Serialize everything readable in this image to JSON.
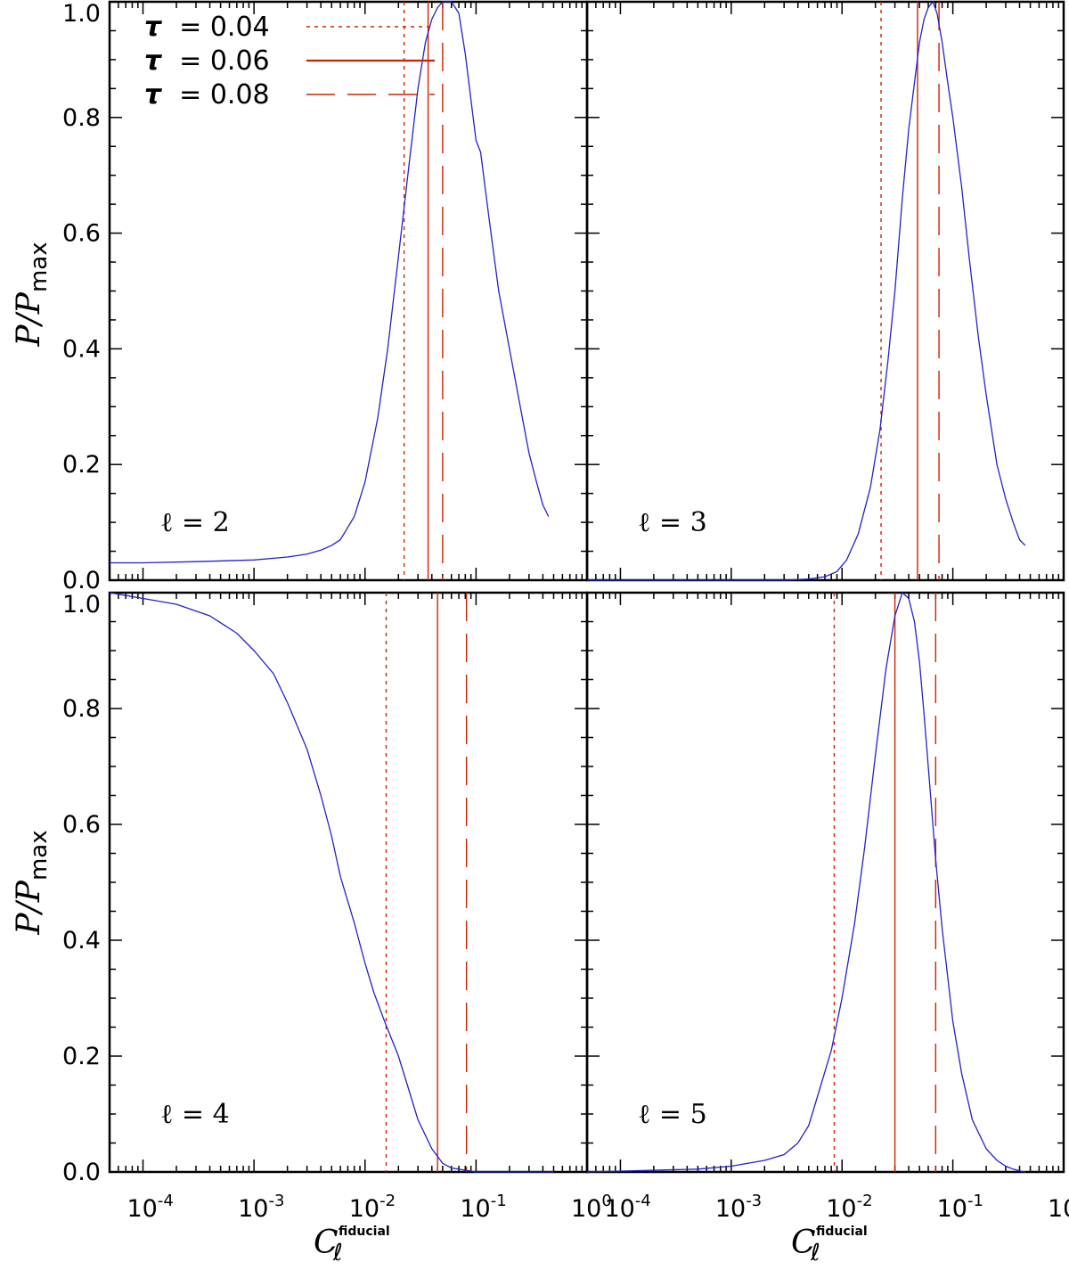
{
  "colors": {
    "curve": "#2222cc",
    "marker": "#cc2200",
    "frame": "#000000"
  },
  "y_axis_label": {
    "main": "P/P",
    "sub": "max"
  },
  "x_axis_label": {
    "main": "C",
    "sub": "ℓ",
    "sup": "fiducial"
  },
  "legend": {
    "items": [
      {
        "symbol": "τ",
        "text": "= 0.04",
        "style": "dotted"
      },
      {
        "symbol": "τ",
        "text": "= 0.06",
        "style": "solid"
      },
      {
        "symbol": "τ",
        "text": "= 0.08",
        "style": "dashed"
      }
    ]
  },
  "chart_data": [
    {
      "type": "line",
      "panel_label": "ℓ = 2",
      "x_scale": "log",
      "xlim": [
        5e-05,
        1.0
      ],
      "ylim": [
        0.0,
        1.0
      ],
      "x_ticks": [
        {
          "base": "10",
          "exp": "-4"
        },
        {
          "base": "10",
          "exp": "-3"
        },
        {
          "base": "10",
          "exp": "-2"
        },
        {
          "base": "10",
          "exp": "-1"
        },
        {
          "base": "10",
          "exp": "0"
        }
      ],
      "y_ticks": [
        "0.0",
        "0.2",
        "0.4",
        "0.6",
        "0.8",
        "1.0"
      ],
      "x": [
        5e-05,
        0.0001,
        0.0003,
        0.001,
        0.002,
        0.003,
        0.004,
        0.005,
        0.006,
        0.008,
        0.01,
        0.013,
        0.016,
        0.02,
        0.025,
        0.03,
        0.035,
        0.04,
        0.045,
        0.05,
        0.055,
        0.06,
        0.065,
        0.07,
        0.08,
        0.09,
        0.1,
        0.11,
        0.13,
        0.16,
        0.2,
        0.25,
        0.3,
        0.35,
        0.4,
        0.45
      ],
      "y": [
        0.03,
        0.03,
        0.032,
        0.035,
        0.04,
        0.045,
        0.052,
        0.06,
        0.07,
        0.11,
        0.17,
        0.28,
        0.4,
        0.56,
        0.72,
        0.85,
        0.93,
        0.97,
        0.99,
        1.0,
        1.0,
        1.0,
        0.99,
        0.98,
        0.91,
        0.83,
        0.76,
        0.74,
        0.63,
        0.5,
        0.4,
        0.3,
        0.22,
        0.17,
        0.13,
        0.11
      ],
      "markers": {
        "tau_0.04": 0.0225,
        "tau_0.06": 0.037,
        "tau_0.08": 0.05
      }
    },
    {
      "type": "line",
      "panel_label": "ℓ = 3",
      "x_scale": "log",
      "xlim": [
        5e-05,
        1.0
      ],
      "ylim": [
        0.0,
        1.0
      ],
      "x_ticks": [
        {
          "base": "10",
          "exp": "-4"
        },
        {
          "base": "10",
          "exp": "-3"
        },
        {
          "base": "10",
          "exp": "-2"
        },
        {
          "base": "10",
          "exp": "-1"
        },
        {
          "base": "10",
          "exp": "0"
        }
      ],
      "y_ticks": [
        "0.0",
        "0.2",
        "0.4",
        "0.6",
        "0.8",
        "1.0"
      ],
      "x": [
        5e-05,
        0.001,
        0.003,
        0.005,
        0.007,
        0.009,
        0.011,
        0.014,
        0.018,
        0.022,
        0.026,
        0.03,
        0.035,
        0.04,
        0.045,
        0.05,
        0.055,
        0.06,
        0.066,
        0.072,
        0.08,
        0.09,
        0.1,
        0.12,
        0.14,
        0.17,
        0.2,
        0.25,
        0.3,
        0.35,
        0.4,
        0.45
      ],
      "y": [
        0.0,
        0.0,
        0.0,
        0.002,
        0.006,
        0.015,
        0.035,
        0.08,
        0.16,
        0.26,
        0.38,
        0.5,
        0.66,
        0.78,
        0.86,
        0.93,
        0.97,
        0.99,
        1.0,
        0.98,
        0.93,
        0.86,
        0.8,
        0.68,
        0.56,
        0.42,
        0.32,
        0.2,
        0.14,
        0.1,
        0.07,
        0.06
      ],
      "markers": {
        "tau_0.04": 0.0225,
        "tau_0.06": 0.048,
        "tau_0.08": 0.075
      }
    },
    {
      "type": "line",
      "panel_label": "ℓ = 4",
      "x_scale": "log",
      "xlim": [
        5e-05,
        1.0
      ],
      "ylim": [
        0.0,
        1.0
      ],
      "x_ticks": [
        {
          "base": "10",
          "exp": "-4"
        },
        {
          "base": "10",
          "exp": "-3"
        },
        {
          "base": "10",
          "exp": "-2"
        },
        {
          "base": "10",
          "exp": "-1"
        },
        {
          "base": "10",
          "exp": "0"
        }
      ],
      "y_ticks": [
        "0.0",
        "0.2",
        "0.4",
        "0.6",
        "0.8",
        "1.0"
      ],
      "x": [
        5e-05,
        0.0001,
        0.0002,
        0.0004,
        0.0007,
        0.001,
        0.0015,
        0.002,
        0.003,
        0.004,
        0.005,
        0.006,
        0.008,
        0.01,
        0.012,
        0.015,
        0.02,
        0.025,
        0.03,
        0.04,
        0.05,
        0.06,
        0.08,
        0.1,
        0.15,
        0.3,
        0.5
      ],
      "y": [
        1.0,
        0.99,
        0.98,
        0.96,
        0.93,
        0.9,
        0.86,
        0.81,
        0.73,
        0.65,
        0.58,
        0.51,
        0.43,
        0.36,
        0.31,
        0.26,
        0.2,
        0.14,
        0.09,
        0.04,
        0.015,
        0.007,
        0.003,
        0.0,
        0.0,
        0.0,
        0.0
      ],
      "markers": {
        "tau_0.04": 0.0155,
        "tau_0.06": 0.045,
        "tau_0.08": 0.082
      }
    },
    {
      "type": "line",
      "panel_label": "ℓ = 5",
      "x_scale": "log",
      "xlim": [
        5e-05,
        1.0
      ],
      "ylim": [
        0.0,
        1.0
      ],
      "x_ticks": [
        {
          "base": "10",
          "exp": "-4"
        },
        {
          "base": "10",
          "exp": "-3"
        },
        {
          "base": "10",
          "exp": "-2"
        },
        {
          "base": "10",
          "exp": "-1"
        },
        {
          "base": "10",
          "exp": "0"
        }
      ],
      "y_ticks": [
        "0.0",
        "0.2",
        "0.4",
        "0.6",
        "0.8",
        "1.0"
      ],
      "x": [
        5e-05,
        0.0005,
        0.001,
        0.002,
        0.003,
        0.004,
        0.005,
        0.006,
        0.008,
        0.01,
        0.013,
        0.016,
        0.02,
        0.025,
        0.03,
        0.035,
        0.04,
        0.045,
        0.05,
        0.055,
        0.06,
        0.07,
        0.08,
        0.1,
        0.12,
        0.15,
        0.2,
        0.25,
        0.3,
        0.35,
        0.4,
        0.45
      ],
      "y": [
        0.0,
        0.005,
        0.01,
        0.02,
        0.03,
        0.05,
        0.08,
        0.13,
        0.21,
        0.3,
        0.43,
        0.56,
        0.72,
        0.87,
        0.96,
        1.0,
        0.99,
        0.95,
        0.88,
        0.79,
        0.7,
        0.54,
        0.42,
        0.26,
        0.17,
        0.09,
        0.04,
        0.02,
        0.01,
        0.005,
        0.002,
        0.0
      ],
      "markers": {
        "tau_0.04": 0.0085,
        "tau_0.06": 0.03,
        "tau_0.08": 0.07
      }
    }
  ]
}
